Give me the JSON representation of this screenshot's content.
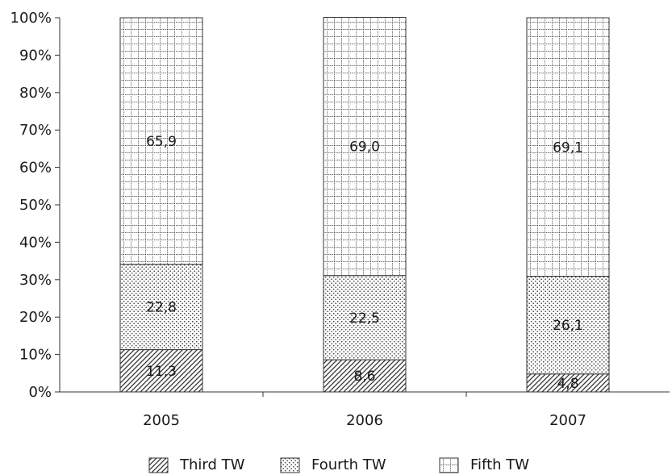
{
  "chart_data": {
    "type": "bar",
    "stacked": true,
    "percent_stacked": true,
    "categories": [
      "2005",
      "2006",
      "2007"
    ],
    "series": [
      {
        "name": "Third TW",
        "values": [
          11.3,
          8.6,
          4.8
        ],
        "labels": [
          "11,3",
          "8,6",
          "4,8"
        ],
        "pattern": "diagonal-hatch"
      },
      {
        "name": "Fourth TW",
        "values": [
          22.8,
          22.5,
          26.1
        ],
        "labels": [
          "22,8",
          "22,5",
          "26,1"
        ],
        "pattern": "dots"
      },
      {
        "name": "Fifth TW",
        "values": [
          65.9,
          69.0,
          69.1
        ],
        "labels": [
          "65,9",
          "69,0",
          "69,1"
        ],
        "pattern": "dotted-grid"
      }
    ],
    "ylim": [
      0,
      100
    ],
    "yticks": [
      "0%",
      "10%",
      "20%",
      "30%",
      "40%",
      "50%",
      "60%",
      "70%",
      "80%",
      "90%",
      "100%"
    ],
    "grid": false,
    "legend_position": "bottom"
  }
}
